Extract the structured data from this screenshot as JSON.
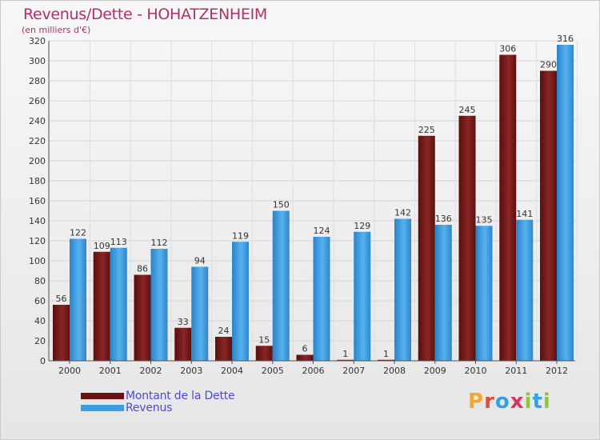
{
  "title": "Revenus/Dette - HOHATZENHEIM",
  "subtitle": "(en milliers d'€)",
  "legend": {
    "debt_label": "Montant de la Dette",
    "revenue_label": "Revenus"
  },
  "logo": {
    "letters": [
      "P",
      "r",
      "o",
      "x",
      "i",
      "t",
      "i"
    ]
  },
  "colors": {
    "debt": "#7a1a1a",
    "revenue": "#3d9de2",
    "title": "#b0306a",
    "legend_text": "#4b4bd4"
  },
  "chart_data": {
    "type": "bar",
    "categories": [
      "2000",
      "2001",
      "2002",
      "2003",
      "2004",
      "2005",
      "2006",
      "2007",
      "2008",
      "2009",
      "2010",
      "2011",
      "2012"
    ],
    "series": [
      {
        "name": "Montant de la Dette",
        "values": [
          56,
          109,
          86,
          33,
          24,
          15,
          6,
          1,
          1,
          225,
          245,
          306,
          290
        ]
      },
      {
        "name": "Revenus",
        "values": [
          122,
          113,
          112,
          94,
          119,
          150,
          124,
          129,
          142,
          136,
          135,
          141,
          316
        ]
      }
    ],
    "ylim": [
      0,
      320
    ],
    "yticks": [
      0,
      20,
      40,
      60,
      80,
      100,
      120,
      140,
      160,
      180,
      200,
      220,
      240,
      260,
      280,
      300,
      320
    ],
    "grid": true,
    "legend_position": "bottom-left"
  }
}
